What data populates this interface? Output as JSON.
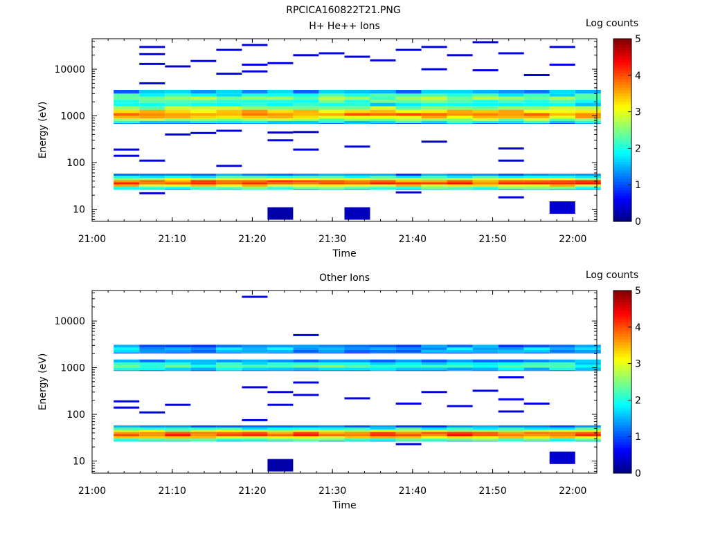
{
  "figure": {
    "title": "RPCICA160822T21.PNG"
  },
  "chart_data": [
    {
      "type": "heatmap",
      "title": "H+ He++ Ions",
      "xlabel": "Time",
      "ylabel": "Energy (eV)",
      "x_ticks": [
        "21:00",
        "21:10",
        "21:20",
        "21:30",
        "21:40",
        "21:50",
        "22:00"
      ],
      "y_ticks": [
        "10",
        "100",
        "1000",
        "10000"
      ],
      "y_scale": "log",
      "ylim": [
        5.5,
        45000
      ],
      "xlim_minutes": [
        0,
        63
      ],
      "colorbar": {
        "label": "Log counts",
        "range": [
          0,
          5
        ],
        "ticks": [
          "0",
          "1",
          "2",
          "3",
          "4",
          "5"
        ]
      },
      "time_bins_minutes": [
        2.7,
        5.9,
        9.1,
        12.3,
        15.5,
        18.7,
        21.9,
        25.1,
        28.3,
        31.5,
        34.7,
        37.9,
        41.1,
        44.3,
        47.5,
        50.7,
        53.9,
        57.1,
        60.3
      ],
      "bands": [
        {
          "name": "high-energy band",
          "energy_range_eV": [
            700,
            3600
          ],
          "profile": [
            [
              3600,
              1.4
            ],
            [
              3000,
              2.0
            ],
            [
              2600,
              2.5
            ],
            [
              2200,
              2.2
            ],
            [
              1900,
              1.8
            ],
            [
              1600,
              2.6
            ],
            [
              1350,
              3.4
            ],
            [
              1150,
              3.7
            ],
            [
              1000,
              3.3
            ],
            [
              880,
              2.6
            ],
            [
              780,
              1.9
            ],
            [
              700,
              1.3
            ]
          ]
        },
        {
          "name": "low-energy band",
          "energy_range_eV": [
            27,
            58
          ],
          "profile": [
            [
              58,
              1.2
            ],
            [
              52,
              2.0
            ],
            [
              47,
              2.8
            ],
            [
              42,
              3.8
            ],
            [
              38,
              4.0
            ],
            [
              34,
              3.2
            ],
            [
              30,
              2.2
            ],
            [
              27,
              1.5
            ]
          ]
        }
      ],
      "isolated_counts": [
        {
          "t": 5.9,
          "e": 30000,
          "v": 0.5
        },
        {
          "t": 5.9,
          "e": 21000,
          "v": 0.5
        },
        {
          "t": 5.9,
          "e": 13000,
          "v": 0.5
        },
        {
          "t": 5.9,
          "e": 5000,
          "v": 0.5
        },
        {
          "t": 9.1,
          "e": 11500,
          "v": 0.3
        },
        {
          "t": 9.1,
          "e": 400,
          "v": 0.5
        },
        {
          "t": 2.7,
          "e": 190,
          "v": 0.5
        },
        {
          "t": 2.7,
          "e": 140,
          "v": 0.5
        },
        {
          "t": 5.9,
          "e": 110,
          "v": 0.5
        },
        {
          "t": 5.9,
          "e": 22,
          "v": 0.4
        },
        {
          "t": 12.3,
          "e": 15000,
          "v": 0.5
        },
        {
          "t": 12.3,
          "e": 430,
          "v": 0.5
        },
        {
          "t": 15.5,
          "e": 26000,
          "v": 0.5
        },
        {
          "t": 15.5,
          "e": 8000,
          "v": 0.5
        },
        {
          "t": 15.5,
          "e": 480,
          "v": 0.5
        },
        {
          "t": 15.5,
          "e": 85,
          "v": 0.5
        },
        {
          "t": 18.7,
          "e": 33000,
          "v": 0.5
        },
        {
          "t": 18.7,
          "e": 12500,
          "v": 0.5
        },
        {
          "t": 18.7,
          "e": 9000,
          "v": 0.5
        },
        {
          "t": 21.9,
          "e": 13500,
          "v": 0.5
        },
        {
          "t": 21.9,
          "e": 440,
          "v": 0.3
        },
        {
          "t": 21.9,
          "e": 300,
          "v": 0.5
        },
        {
          "t": 21.9,
          "e": 9,
          "v": 0.2
        },
        {
          "t": 25.1,
          "e": 20000,
          "v": 0.5
        },
        {
          "t": 25.1,
          "e": 450,
          "v": 0.3
        },
        {
          "t": 25.1,
          "e": 190,
          "v": 0.5
        },
        {
          "t": 28.3,
          "e": 22000,
          "v": 0.5
        },
        {
          "t": 31.5,
          "e": 18500,
          "v": 0.5
        },
        {
          "t": 31.5,
          "e": 220,
          "v": 0.5
        },
        {
          "t": 31.5,
          "e": 9,
          "v": 0.3
        },
        {
          "t": 34.7,
          "e": 15500,
          "v": 0.5
        },
        {
          "t": 37.9,
          "e": 26000,
          "v": 0.5
        },
        {
          "t": 37.9,
          "e": 23,
          "v": 0.4
        },
        {
          "t": 41.1,
          "e": 30000,
          "v": 0.5
        },
        {
          "t": 41.1,
          "e": 10000,
          "v": 0.5
        },
        {
          "t": 41.1,
          "e": 280,
          "v": 0.4
        },
        {
          "t": 44.3,
          "e": 20000,
          "v": 0.5
        },
        {
          "t": 47.5,
          "e": 38000,
          "v": 0.4
        },
        {
          "t": 47.5,
          "e": 9500,
          "v": 0.5
        },
        {
          "t": 50.7,
          "e": 22000,
          "v": 0.5
        },
        {
          "t": 50.7,
          "e": 200,
          "v": 0.4
        },
        {
          "t": 50.7,
          "e": 110,
          "v": 0.4
        },
        {
          "t": 50.7,
          "e": 18,
          "v": 0.4
        },
        {
          "t": 53.9,
          "e": 7500,
          "v": 0.5
        },
        {
          "t": 57.1,
          "e": 30000,
          "v": 0.5
        },
        {
          "t": 57.1,
          "e": 12500,
          "v": 0.5
        },
        {
          "t": 57.1,
          "e": 12,
          "v": 0.4
        }
      ]
    },
    {
      "type": "heatmap",
      "title": "Other Ions",
      "xlabel": "Time",
      "ylabel": "Energy (eV)",
      "x_ticks": [
        "21:00",
        "21:10",
        "21:20",
        "21:30",
        "21:40",
        "21:50",
        "22:00"
      ],
      "y_ticks": [
        "10",
        "100",
        "1000",
        "10000"
      ],
      "y_scale": "log",
      "ylim": [
        5.5,
        45000
      ],
      "xlim_minutes": [
        0,
        63
      ],
      "colorbar": {
        "label": "Log counts",
        "range": [
          0,
          5
        ],
        "ticks": [
          "0",
          "1",
          "2",
          "3",
          "4",
          "5"
        ]
      },
      "time_bins_minutes": [
        2.7,
        5.9,
        9.1,
        12.3,
        15.5,
        18.7,
        21.9,
        25.1,
        28.3,
        31.5,
        34.7,
        37.9,
        41.1,
        44.3,
        47.5,
        50.7,
        53.9,
        57.1,
        60.3
      ],
      "bands": [
        {
          "name": "upper band",
          "energy_range_eV": [
            2100,
            3100
          ],
          "profile": [
            [
              3100,
              1.2
            ],
            [
              2700,
              1.6
            ],
            [
              2400,
              1.4
            ],
            [
              2100,
              0.9
            ]
          ]
        },
        {
          "name": "middle band",
          "energy_range_eV": [
            880,
            1500
          ],
          "profile": [
            [
              1500,
              1.3
            ],
            [
              1300,
              1.9
            ],
            [
              1150,
              2.2
            ],
            [
              1000,
              1.7
            ],
            [
              880,
              1.1
            ]
          ]
        },
        {
          "name": "low-energy band",
          "energy_range_eV": [
            27,
            58
          ],
          "profile": [
            [
              58,
              1.2
            ],
            [
              52,
              2.0
            ],
            [
              47,
              2.8
            ],
            [
              42,
              3.8
            ],
            [
              38,
              4.0
            ],
            [
              34,
              3.2
            ],
            [
              30,
              2.2
            ],
            [
              27,
              1.5
            ]
          ]
        }
      ],
      "isolated_counts": [
        {
          "t": 2.7,
          "e": 190,
          "v": 0.5
        },
        {
          "t": 2.7,
          "e": 140,
          "v": 0.5
        },
        {
          "t": 5.9,
          "e": 110,
          "v": 0.5
        },
        {
          "t": 9.1,
          "e": 160,
          "v": 0.5
        },
        {
          "t": 18.7,
          "e": 33000,
          "v": 0.5
        },
        {
          "t": 18.7,
          "e": 380,
          "v": 0.5
        },
        {
          "t": 18.7,
          "e": 75,
          "v": 0.5
        },
        {
          "t": 21.9,
          "e": 300,
          "v": 0.5
        },
        {
          "t": 21.9,
          "e": 160,
          "v": 0.5
        },
        {
          "t": 21.9,
          "e": 9,
          "v": 0.2
        },
        {
          "t": 25.1,
          "e": 5000,
          "v": 0.5
        },
        {
          "t": 25.1,
          "e": 480,
          "v": 0.5
        },
        {
          "t": 25.1,
          "e": 260,
          "v": 0.5
        },
        {
          "t": 31.5,
          "e": 220,
          "v": 0.5
        },
        {
          "t": 37.9,
          "e": 170,
          "v": 0.5
        },
        {
          "t": 37.9,
          "e": 23,
          "v": 0.4
        },
        {
          "t": 41.1,
          "e": 300,
          "v": 0.5
        },
        {
          "t": 44.3,
          "e": 150,
          "v": 0.5
        },
        {
          "t": 47.5,
          "e": 320,
          "v": 0.5
        },
        {
          "t": 50.7,
          "e": 620,
          "v": 0.5
        },
        {
          "t": 50.7,
          "e": 210,
          "v": 0.5
        },
        {
          "t": 50.7,
          "e": 115,
          "v": 0.4
        },
        {
          "t": 53.9,
          "e": 170,
          "v": 0.5
        },
        {
          "t": 57.1,
          "e": 13,
          "v": 0.4
        }
      ]
    }
  ]
}
